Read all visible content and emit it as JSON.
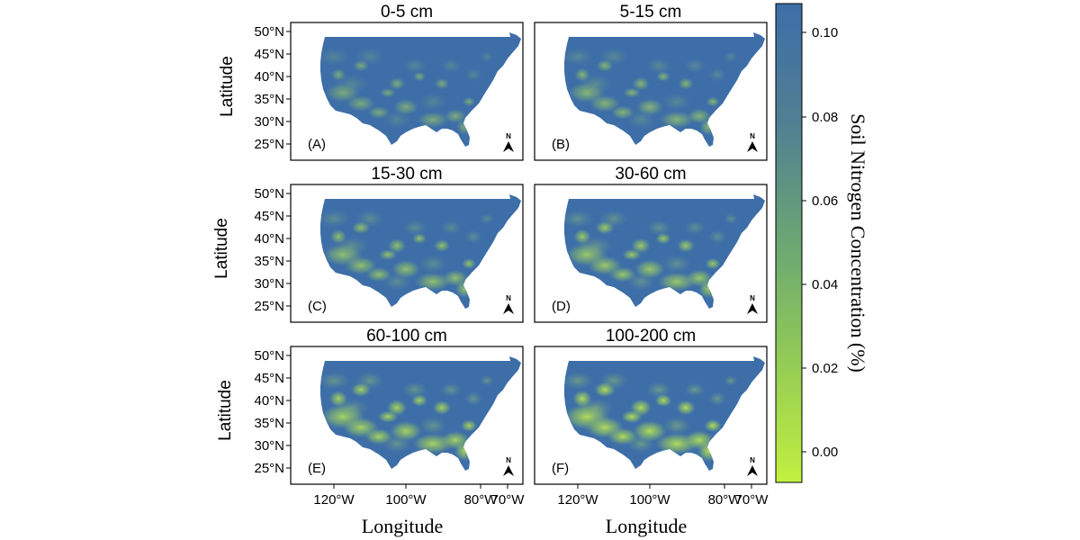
{
  "figure": {
    "panels": [
      {
        "title": "0-5 cm",
        "tag": "(A)"
      },
      {
        "title": "5-15 cm",
        "tag": "(B)"
      },
      {
        "title": "15-30 cm",
        "tag": "(C)"
      },
      {
        "title": "30-60 cm",
        "tag": "(D)"
      },
      {
        "title": "60-100 cm",
        "tag": "(E)"
      },
      {
        "title": "100-200 cm",
        "tag": "(F)"
      }
    ],
    "y_axis_title": "Latitude",
    "x_axis_title": "Longitude",
    "lat_ticks": [
      "50°N",
      "45°N",
      "40°N",
      "35°N",
      "30°N",
      "25°N"
    ],
    "lon_ticks": [
      "120°W",
      "100°W",
      "80°W",
      "70°W"
    ],
    "north_arrow_label": "N",
    "legend": {
      "title": "Soil Nitrogen Concentration (%)",
      "ticks": [
        "0.10",
        "0.08",
        "0.06",
        "0.04",
        "0.02",
        "0.00"
      ],
      "color_low": "#c2f040",
      "color_high": "#3d6ea8"
    },
    "colors": {
      "map_fill": "#3d6ea8",
      "low_value": "#a8d84a",
      "mid_value": "#6f9f86"
    }
  }
}
